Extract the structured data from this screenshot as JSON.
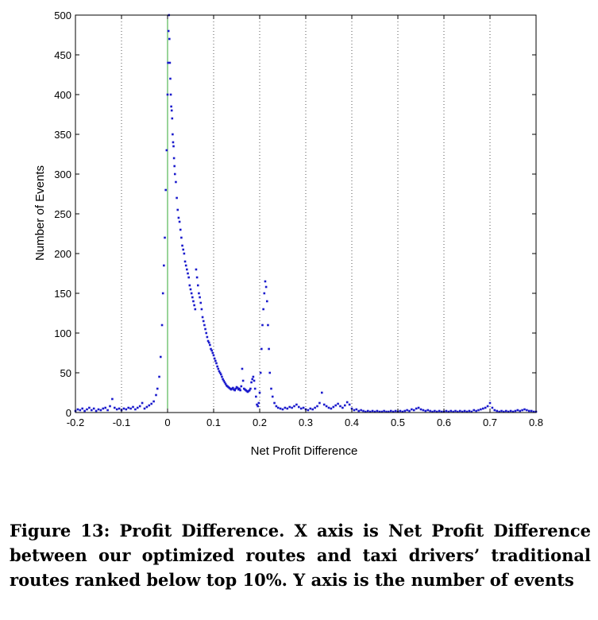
{
  "chart_data": {
    "type": "scatter",
    "xlabel": "Net Profit Difference",
    "ylabel": "Number of Events",
    "xlim": [
      -0.2,
      0.8
    ],
    "ylim": [
      0,
      500
    ],
    "xticks": [
      "-0.2",
      "-0.1",
      "0",
      "0.1",
      "0.2",
      "0.3",
      "0.4",
      "0.5",
      "0.6",
      "0.7",
      "0.8"
    ],
    "yticks": [
      "0",
      "50",
      "100",
      "150",
      "200",
      "250",
      "300",
      "350",
      "400",
      "450",
      "500"
    ],
    "grid": "vertical dotted",
    "reference_line_x": 0,
    "marker_color": "#1a1acc",
    "reference_color": "#33aa33",
    "series": [
      {
        "points": [
          [
            -0.2,
            2
          ],
          [
            -0.195,
            4
          ],
          [
            -0.19,
            3
          ],
          [
            -0.185,
            5
          ],
          [
            -0.18,
            2
          ],
          [
            -0.175,
            4
          ],
          [
            -0.17,
            6
          ],
          [
            -0.165,
            3
          ],
          [
            -0.16,
            5
          ],
          [
            -0.155,
            2
          ],
          [
            -0.15,
            4
          ],
          [
            -0.145,
            3
          ],
          [
            -0.14,
            5
          ],
          [
            -0.135,
            6
          ],
          [
            -0.13,
            3
          ],
          [
            -0.125,
            8
          ],
          [
            -0.12,
            17
          ],
          [
            -0.115,
            6
          ],
          [
            -0.11,
            4
          ],
          [
            -0.105,
            5
          ],
          [
            -0.1,
            3
          ],
          [
            -0.095,
            5
          ],
          [
            -0.09,
            4
          ],
          [
            -0.085,
            6
          ],
          [
            -0.08,
            5
          ],
          [
            -0.075,
            7
          ],
          [
            -0.07,
            4
          ],
          [
            -0.065,
            6
          ],
          [
            -0.06,
            8
          ],
          [
            -0.055,
            12
          ],
          [
            -0.05,
            5
          ],
          [
            -0.045,
            7
          ],
          [
            -0.04,
            9
          ],
          [
            -0.035,
            11
          ],
          [
            -0.03,
            14
          ],
          [
            -0.025,
            22
          ],
          [
            -0.022,
            30
          ],
          [
            -0.018,
            45
          ],
          [
            -0.015,
            70
          ],
          [
            -0.012,
            110
          ],
          [
            -0.01,
            150
          ],
          [
            -0.008,
            185
          ],
          [
            -0.006,
            220
          ],
          [
            -0.004,
            280
          ],
          [
            -0.002,
            330
          ],
          [
            0,
            400
          ],
          [
            0.001,
            440
          ],
          [
            0.002,
            480
          ],
          [
            0.003,
            500
          ],
          [
            0.004,
            470
          ],
          [
            0.005,
            440
          ],
          [
            0.006,
            420
          ],
          [
            0.007,
            400
          ],
          [
            0.008,
            385
          ],
          [
            0.009,
            380
          ],
          [
            0.01,
            370
          ],
          [
            0.011,
            350
          ],
          [
            0.012,
            340
          ],
          [
            0.013,
            335
          ],
          [
            0.014,
            320
          ],
          [
            0.015,
            310
          ],
          [
            0.016,
            300
          ],
          [
            0.018,
            290
          ],
          [
            0.02,
            270
          ],
          [
            0.022,
            255
          ],
          [
            0.024,
            245
          ],
          [
            0.026,
            240
          ],
          [
            0.028,
            230
          ],
          [
            0.03,
            220
          ],
          [
            0.032,
            210
          ],
          [
            0.034,
            205
          ],
          [
            0.036,
            200
          ],
          [
            0.038,
            190
          ],
          [
            0.04,
            185
          ],
          [
            0.042,
            180
          ],
          [
            0.044,
            175
          ],
          [
            0.046,
            170
          ],
          [
            0.048,
            160
          ],
          [
            0.05,
            155
          ],
          [
            0.052,
            150
          ],
          [
            0.054,
            145
          ],
          [
            0.056,
            140
          ],
          [
            0.058,
            135
          ],
          [
            0.06,
            130
          ],
          [
            0.062,
            180
          ],
          [
            0.064,
            170
          ],
          [
            0.066,
            160
          ],
          [
            0.068,
            150
          ],
          [
            0.07,
            145
          ],
          [
            0.072,
            138
          ],
          [
            0.074,
            130
          ],
          [
            0.076,
            120
          ],
          [
            0.078,
            115
          ],
          [
            0.08,
            110
          ],
          [
            0.082,
            105
          ],
          [
            0.084,
            100
          ],
          [
            0.086,
            95
          ],
          [
            0.088,
            90
          ],
          [
            0.09,
            88
          ],
          [
            0.092,
            85
          ],
          [
            0.094,
            80
          ],
          [
            0.096,
            78
          ],
          [
            0.098,
            75
          ],
          [
            0.1,
            72
          ],
          [
            0.102,
            68
          ],
          [
            0.104,
            65
          ],
          [
            0.106,
            62
          ],
          [
            0.108,
            58
          ],
          [
            0.11,
            55
          ],
          [
            0.112,
            52
          ],
          [
            0.114,
            50
          ],
          [
            0.116,
            48
          ],
          [
            0.118,
            45
          ],
          [
            0.12,
            42
          ],
          [
            0.122,
            40
          ],
          [
            0.124,
            38
          ],
          [
            0.126,
            36
          ],
          [
            0.128,
            34
          ],
          [
            0.13,
            33
          ],
          [
            0.132,
            32
          ],
          [
            0.134,
            31
          ],
          [
            0.136,
            30
          ],
          [
            0.138,
            29
          ],
          [
            0.14,
            30
          ],
          [
            0.142,
            31
          ],
          [
            0.144,
            29
          ],
          [
            0.146,
            28
          ],
          [
            0.148,
            30
          ],
          [
            0.15,
            32
          ],
          [
            0.152,
            31
          ],
          [
            0.154,
            29
          ],
          [
            0.156,
            30
          ],
          [
            0.158,
            28
          ],
          [
            0.16,
            33
          ],
          [
            0.162,
            55
          ],
          [
            0.164,
            40
          ],
          [
            0.166,
            30
          ],
          [
            0.168,
            29
          ],
          [
            0.17,
            28
          ],
          [
            0.172,
            27
          ],
          [
            0.174,
            26
          ],
          [
            0.176,
            27
          ],
          [
            0.178,
            28
          ],
          [
            0.18,
            30
          ],
          [
            0.182,
            38
          ],
          [
            0.184,
            42
          ],
          [
            0.186,
            45
          ],
          [
            0.188,
            40
          ],
          [
            0.19,
            30
          ],
          [
            0.192,
            20
          ],
          [
            0.194,
            10
          ],
          [
            0.196,
            8
          ],
          [
            0.198,
            12
          ],
          [
            0.2,
            25
          ],
          [
            0.202,
            50
          ],
          [
            0.204,
            80
          ],
          [
            0.206,
            110
          ],
          [
            0.208,
            130
          ],
          [
            0.21,
            150
          ],
          [
            0.212,
            165
          ],
          [
            0.214,
            158
          ],
          [
            0.216,
            140
          ],
          [
            0.218,
            110
          ],
          [
            0.22,
            80
          ],
          [
            0.222,
            50
          ],
          [
            0.225,
            30
          ],
          [
            0.228,
            20
          ],
          [
            0.232,
            12
          ],
          [
            0.236,
            8
          ],
          [
            0.24,
            6
          ],
          [
            0.245,
            5
          ],
          [
            0.25,
            4
          ],
          [
            0.255,
            6
          ],
          [
            0.26,
            5
          ],
          [
            0.265,
            7
          ],
          [
            0.27,
            6
          ],
          [
            0.275,
            8
          ],
          [
            0.28,
            10
          ],
          [
            0.285,
            7
          ],
          [
            0.29,
            5
          ],
          [
            0.295,
            6
          ],
          [
            0.3,
            4
          ],
          [
            0.305,
            3
          ],
          [
            0.31,
            5
          ],
          [
            0.315,
            4
          ],
          [
            0.32,
            6
          ],
          [
            0.325,
            8
          ],
          [
            0.33,
            12
          ],
          [
            0.335,
            25
          ],
          [
            0.34,
            10
          ],
          [
            0.345,
            8
          ],
          [
            0.35,
            6
          ],
          [
            0.355,
            5
          ],
          [
            0.36,
            7
          ],
          [
            0.365,
            9
          ],
          [
            0.37,
            11
          ],
          [
            0.375,
            8
          ],
          [
            0.38,
            6
          ],
          [
            0.385,
            9
          ],
          [
            0.39,
            13
          ],
          [
            0.395,
            10
          ],
          [
            0.4,
            5
          ],
          [
            0.405,
            3
          ],
          [
            0.41,
            4
          ],
          [
            0.415,
            2
          ],
          [
            0.42,
            3
          ],
          [
            0.425,
            2
          ],
          [
            0.43,
            1
          ],
          [
            0.435,
            2
          ],
          [
            0.44,
            1
          ],
          [
            0.445,
            2
          ],
          [
            0.45,
            1
          ],
          [
            0.455,
            2
          ],
          [
            0.46,
            1
          ],
          [
            0.465,
            1
          ],
          [
            0.47,
            2
          ],
          [
            0.475,
            1
          ],
          [
            0.48,
            1
          ],
          [
            0.485,
            2
          ],
          [
            0.49,
            1
          ],
          [
            0.495,
            2
          ],
          [
            0.5,
            1
          ],
          [
            0.505,
            2
          ],
          [
            0.51,
            1
          ],
          [
            0.515,
            2
          ],
          [
            0.52,
            3
          ],
          [
            0.525,
            2
          ],
          [
            0.53,
            4
          ],
          [
            0.535,
            3
          ],
          [
            0.54,
            5
          ],
          [
            0.545,
            6
          ],
          [
            0.55,
            4
          ],
          [
            0.555,
            3
          ],
          [
            0.56,
            2
          ],
          [
            0.565,
            3
          ],
          [
            0.57,
            2
          ],
          [
            0.575,
            1
          ],
          [
            0.58,
            2
          ],
          [
            0.585,
            1
          ],
          [
            0.59,
            2
          ],
          [
            0.595,
            1
          ],
          [
            0.6,
            1
          ],
          [
            0.605,
            2
          ],
          [
            0.61,
            1
          ],
          [
            0.615,
            2
          ],
          [
            0.62,
            1
          ],
          [
            0.625,
            2
          ],
          [
            0.63,
            1
          ],
          [
            0.635,
            2
          ],
          [
            0.64,
            1
          ],
          [
            0.645,
            2
          ],
          [
            0.65,
            1
          ],
          [
            0.655,
            2
          ],
          [
            0.66,
            1
          ],
          [
            0.665,
            3
          ],
          [
            0.67,
            2
          ],
          [
            0.675,
            3
          ],
          [
            0.68,
            4
          ],
          [
            0.685,
            5
          ],
          [
            0.69,
            6
          ],
          [
            0.695,
            8
          ],
          [
            0.7,
            12
          ],
          [
            0.705,
            6
          ],
          [
            0.71,
            3
          ],
          [
            0.715,
            2
          ],
          [
            0.72,
            1
          ],
          [
            0.725,
            2
          ],
          [
            0.73,
            1
          ],
          [
            0.735,
            2
          ],
          [
            0.74,
            1
          ],
          [
            0.745,
            2
          ],
          [
            0.75,
            1
          ],
          [
            0.755,
            2
          ],
          [
            0.76,
            3
          ],
          [
            0.765,
            2
          ],
          [
            0.77,
            3
          ],
          [
            0.775,
            4
          ],
          [
            0.78,
            3
          ],
          [
            0.785,
            2
          ],
          [
            0.79,
            2
          ],
          [
            0.795,
            1
          ],
          [
            0.8,
            1
          ]
        ]
      }
    ]
  },
  "caption": "Figure 13: Profit Difference. X axis is Net Profit Difference between our optimized routes and taxi drivers’ traditional routes ranked below top 10%. Y axis is the number of events"
}
